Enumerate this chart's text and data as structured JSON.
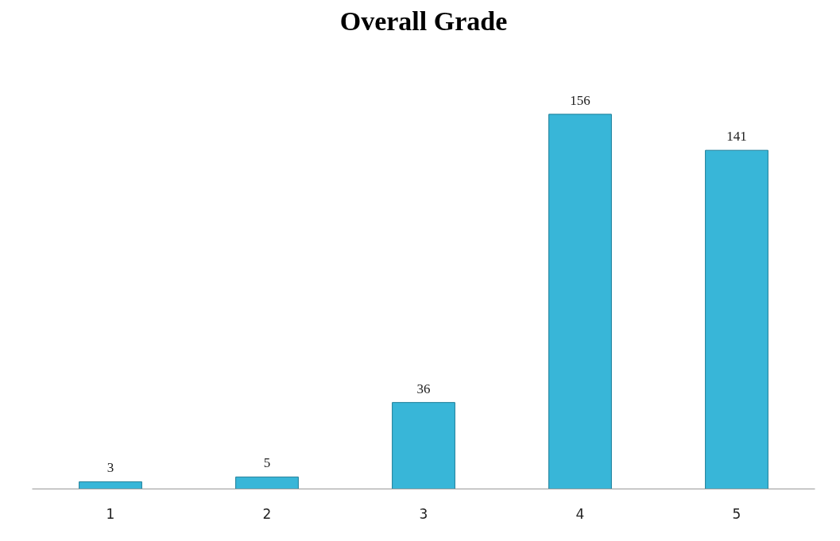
{
  "chart_data": {
    "type": "bar",
    "title": "Overall Grade",
    "categories": [
      "1",
      "2",
      "3",
      "4",
      "5"
    ],
    "values": [
      3,
      5,
      36,
      156,
      141
    ],
    "color": "#38b6d8",
    "data_labels": true
  }
}
